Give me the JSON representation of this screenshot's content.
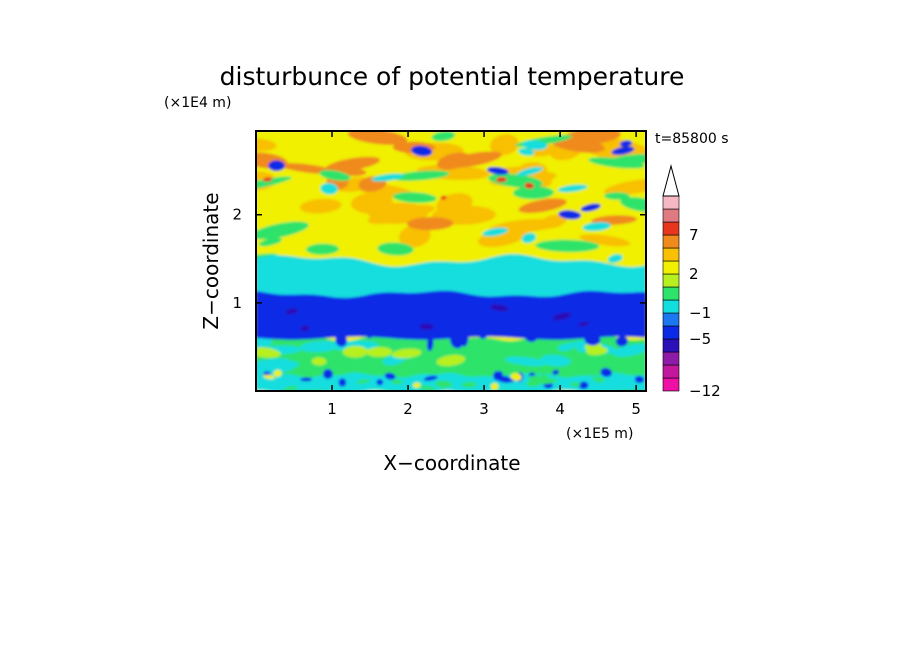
{
  "chart_data": {
    "type": "heatmap",
    "subtype": "filled-contour",
    "title": "disturbunce of potential temperature",
    "time_label": "t=85800 s",
    "xlabel": "X−coordinate",
    "ylabel": "Z−coordinate",
    "x_scale_label": "(×1E5 m)",
    "y_scale_label": "(×1E4 m)",
    "xlim": [
      0,
      5.13
    ],
    "ylim": [
      0,
      2.95
    ],
    "xticks": [
      1,
      2,
      3,
      4,
      5
    ],
    "xtick_labels": [
      "1",
      "2",
      "3",
      "4",
      "5"
    ],
    "yticks": [
      1,
      2
    ],
    "ytick_labels": [
      "1",
      "2"
    ],
    "grid": false,
    "colorbar": {
      "placement": "right",
      "extend": "max",
      "levels": [
        -12,
        -10,
        -8,
        -7,
        -5,
        -3,
        -1,
        0,
        1,
        2,
        3,
        5,
        7,
        9,
        11
      ],
      "colors": [
        "#ee0fa4",
        "#c2189e",
        "#8e1aa8",
        "#2c10b8",
        "#0b2ae6",
        "#1b78f0",
        "#13dede",
        "#2de36a",
        "#b7f01e",
        "#f0f000",
        "#f8c000",
        "#f08a1c",
        "#e8361e",
        "#e07a82",
        "#f5b8c4"
      ],
      "tick_values": [
        -12,
        -5,
        -1,
        2,
        7
      ],
      "tick_labels": [
        "−12",
        "−5",
        "−1",
        "2",
        "7"
      ]
    },
    "field_bands": [
      {
        "z_from": 0.0,
        "z_to": 0.18,
        "typical_value": -1,
        "note": "mixed cyan/green/blue near surface"
      },
      {
        "z_from": 0.18,
        "z_to": 0.55,
        "typical_value": 0.5,
        "note": "green and cyan with small blue cells"
      },
      {
        "z_from": 0.55,
        "z_to": 1.1,
        "typical_value": -4,
        "note": "continuous blue layer"
      },
      {
        "z_from": 1.1,
        "z_to": 1.45,
        "typical_value": -0.5,
        "note": "cyan band"
      },
      {
        "z_from": 1.45,
        "z_to": 2.95,
        "typical_value": 2.5,
        "note": "yellow/orange with green filaments and blue eddies"
      }
    ]
  }
}
